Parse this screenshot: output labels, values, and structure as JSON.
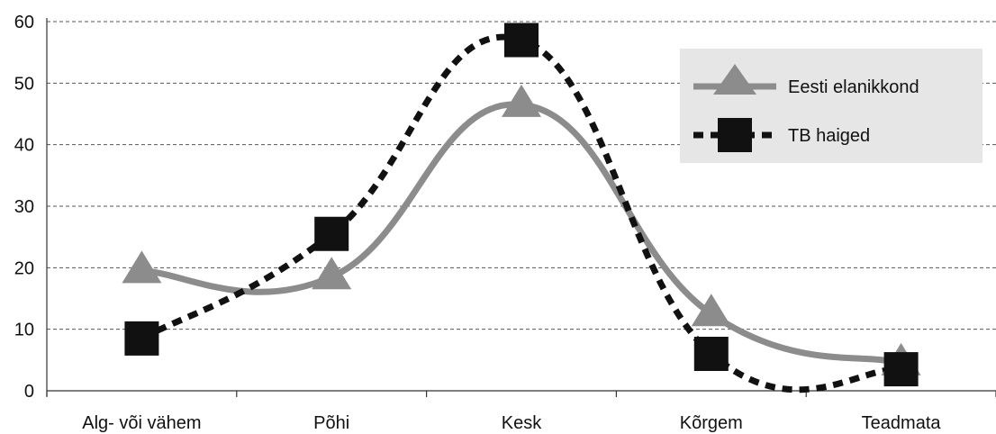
{
  "chart_data": {
    "type": "line",
    "categories": [
      "Alg- või vähem",
      "Põhi",
      "Kesk",
      "Kõrgem",
      "Teadmata"
    ],
    "series": [
      {
        "name": "Eesti elanikkond",
        "values": [
          19.5,
          18.5,
          46.5,
          12.5,
          4.5
        ],
        "color": "#8c8c8c",
        "line_style": "solid",
        "marker": "triangle"
      },
      {
        "name": "TB haiged",
        "values": [
          8.5,
          25.5,
          57,
          6,
          3.5
        ],
        "color": "#111111",
        "line_style": "dotted",
        "marker": "square"
      }
    ],
    "ylim": [
      0,
      60
    ],
    "yticks": [
      "0",
      "10",
      "20",
      "30",
      "40",
      "50",
      "60"
    ],
    "grid": true,
    "grid_style": "dashed",
    "legend_position": "top-right",
    "title": "",
    "xlabel": "",
    "ylabel": ""
  }
}
